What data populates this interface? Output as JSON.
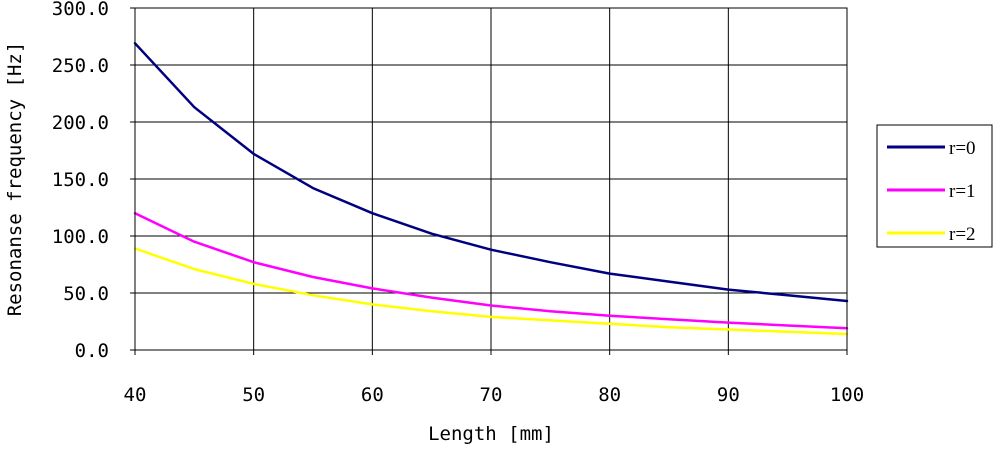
{
  "chart_data": {
    "type": "line",
    "title": "",
    "xlabel": "Length [mm]",
    "ylabel": "Resonanse frequency [Hz]",
    "xlim": [
      40,
      100
    ],
    "ylim": [
      0,
      300
    ],
    "x_ticks": [
      40,
      50,
      60,
      70,
      80,
      90,
      100
    ],
    "x_tick_labels": [
      "40",
      "50",
      "60",
      "70",
      "80",
      "90",
      "100"
    ],
    "y_ticks": [
      0,
      50,
      100,
      150,
      200,
      250,
      300
    ],
    "y_tick_labels": [
      "0.0",
      "50.0",
      "100.0",
      "150.0",
      "200.0",
      "250.0",
      "300.0"
    ],
    "grid": true,
    "legend_position": "right",
    "x": [
      40,
      45,
      50,
      55,
      60,
      65,
      70,
      75,
      80,
      85,
      90,
      95,
      100
    ],
    "series": [
      {
        "name": "r=0",
        "color": "#000080",
        "values": [
          269,
          213,
          172,
          142,
          120,
          102,
          88,
          77,
          67,
          60,
          53,
          48,
          43
        ]
      },
      {
        "name": "r=1",
        "color": "#ff00ff",
        "values": [
          120,
          95,
          77,
          64,
          54,
          46,
          39,
          34,
          30,
          27,
          24,
          21.5,
          19
        ]
      },
      {
        "name": "r=2",
        "color": "#ffff00",
        "values": [
          89,
          71,
          58,
          48,
          40,
          34,
          29,
          26,
          23,
          20,
          18,
          16,
          14
        ]
      }
    ]
  }
}
